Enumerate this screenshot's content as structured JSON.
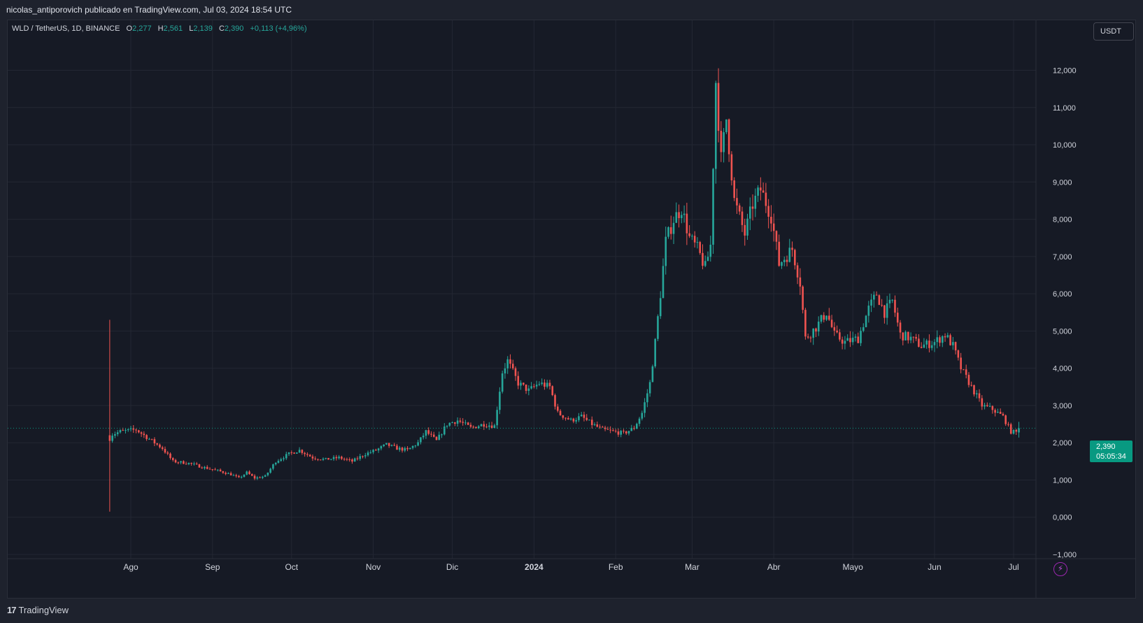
{
  "header": {
    "attribution": "nicolas_antiporovich publicado en TradingView.com, Jul 03, 2024 18:54 UTC"
  },
  "legend": {
    "symbol": "WLD / TetherUS, 1D, BINANCE",
    "open_label": "O",
    "open": "2,277",
    "high_label": "H",
    "high": "2,561",
    "low_label": "L",
    "low": "2,139",
    "close_label": "C",
    "close": "2,390",
    "change": "+0,113 (+4,96%)"
  },
  "currency_button": "USDT",
  "price_box": {
    "price": "2,390",
    "countdown": "05:05:34"
  },
  "footer": {
    "brand": "TradingView",
    "brand_mark": "17"
  },
  "icons": {
    "bolt": "lightning-icon",
    "brand": "tradingview-logo-icon"
  },
  "colors": {
    "up": "#26a69a",
    "down": "#ef5350",
    "background": "#161a25",
    "grid": "#232733",
    "price_line": "#089981",
    "alert": "#9c27b0"
  },
  "chart_data": {
    "type": "candlestick",
    "y_axis": {
      "min": -1,
      "max": 12,
      "ticks": [
        "12,000",
        "11,000",
        "10,000",
        "9,000",
        "8,000",
        "7,000",
        "6,000",
        "5,000",
        "4,000",
        "3,000",
        "2,000",
        "1,000",
        "0,000",
        "−1,000"
      ]
    },
    "x_axis": {
      "months": [
        "Ago",
        "Sep",
        "Oct",
        "Nov",
        "Dic",
        "2024",
        "Feb",
        "Mar",
        "Abr",
        "Mayo",
        "Jun",
        "Jul"
      ]
    },
    "last_price": 2.39,
    "series": [
      {
        "date": "2023-07-24",
        "close": 2.2,
        "low": 0.15,
        "high": 5.3
      },
      {
        "date": "2023-07-28",
        "close": 2.3
      },
      {
        "date": "2023-08-03",
        "close": 2.35
      },
      {
        "date": "2023-08-08",
        "close": 2.1
      },
      {
        "date": "2023-08-13",
        "close": 1.85
      },
      {
        "date": "2023-08-17",
        "close": 1.5
      },
      {
        "date": "2023-08-23",
        "close": 1.45
      },
      {
        "date": "2023-08-28",
        "close": 1.35
      },
      {
        "date": "2023-09-03",
        "close": 1.25
      },
      {
        "date": "2023-09-08",
        "close": 1.15
      },
      {
        "date": "2023-09-11",
        "close": 1.05
      },
      {
        "date": "2023-09-14",
        "close": 1.2
      },
      {
        "date": "2023-09-17",
        "close": 1.05
      },
      {
        "date": "2023-09-21",
        "close": 1.1
      },
      {
        "date": "2023-09-25",
        "close": 1.5
      },
      {
        "date": "2023-09-30",
        "close": 1.7
      },
      {
        "date": "2023-10-04",
        "close": 1.8
      },
      {
        "date": "2023-10-09",
        "close": 1.6
      },
      {
        "date": "2023-10-14",
        "close": 1.55
      },
      {
        "date": "2023-10-19",
        "close": 1.6
      },
      {
        "date": "2023-10-24",
        "close": 1.5
      },
      {
        "date": "2023-10-29",
        "close": 1.7
      },
      {
        "date": "2023-11-02",
        "close": 1.8
      },
      {
        "date": "2023-11-06",
        "close": 1.95
      },
      {
        "date": "2023-11-10",
        "close": 1.85
      },
      {
        "date": "2023-11-14",
        "close": 1.8
      },
      {
        "date": "2023-11-18",
        "close": 2.0
      },
      {
        "date": "2023-11-21",
        "close": 2.3
      },
      {
        "date": "2023-11-25",
        "close": 2.05
      },
      {
        "date": "2023-11-29",
        "close": 2.5
      },
      {
        "date": "2023-12-03",
        "close": 2.6
      },
      {
        "date": "2023-12-08",
        "close": 2.4
      },
      {
        "date": "2023-12-13",
        "close": 2.5
      },
      {
        "date": "2023-12-17",
        "close": 2.45
      },
      {
        "date": "2023-12-20",
        "close": 3.9
      },
      {
        "date": "2023-12-22",
        "close": 4.2
      },
      {
        "date": "2023-12-26",
        "close": 3.6
      },
      {
        "date": "2023-12-30",
        "close": 3.4
      },
      {
        "date": "2024-01-03",
        "close": 3.6
      },
      {
        "date": "2024-01-07",
        "close": 3.5
      },
      {
        "date": "2024-01-10",
        "close": 2.8
      },
      {
        "date": "2024-01-15",
        "close": 2.6
      },
      {
        "date": "2024-01-19",
        "close": 2.7
      },
      {
        "date": "2024-01-23",
        "close": 2.5
      },
      {
        "date": "2024-01-27",
        "close": 2.35
      },
      {
        "date": "2024-01-31",
        "close": 2.3
      },
      {
        "date": "2024-02-04",
        "close": 2.25
      },
      {
        "date": "2024-02-08",
        "close": 2.4
      },
      {
        "date": "2024-02-11",
        "close": 2.8
      },
      {
        "date": "2024-02-14",
        "close": 3.6
      },
      {
        "date": "2024-02-16",
        "close": 4.7
      },
      {
        "date": "2024-02-18",
        "close": 6.0
      },
      {
        "date": "2024-02-20",
        "close": 7.4
      },
      {
        "date": "2024-02-23",
        "close": 8.0
      },
      {
        "date": "2024-02-26",
        "close": 8.3
      },
      {
        "date": "2024-02-29",
        "close": 7.5
      },
      {
        "date": "2024-03-03",
        "close": 7.2
      },
      {
        "date": "2024-03-06",
        "close": 6.7
      },
      {
        "date": "2024-03-08",
        "close": 7.3
      },
      {
        "date": "2024-03-10",
        "close": 11.7
      },
      {
        "date": "2024-03-12",
        "close": 9.6
      },
      {
        "date": "2024-03-14",
        "close": 10.7
      },
      {
        "date": "2024-03-17",
        "close": 8.5
      },
      {
        "date": "2024-03-21",
        "close": 7.6
      },
      {
        "date": "2024-03-24",
        "close": 8.4
      },
      {
        "date": "2024-03-27",
        "close": 8.8
      },
      {
        "date": "2024-03-31",
        "close": 8.1
      },
      {
        "date": "2024-04-03",
        "close": 6.8
      },
      {
        "date": "2024-04-08",
        "close": 7.2
      },
      {
        "date": "2024-04-11",
        "close": 6.3
      },
      {
        "date": "2024-04-13",
        "close": 4.8
      },
      {
        "date": "2024-04-17",
        "close": 5.1
      },
      {
        "date": "2024-04-21",
        "close": 5.5
      },
      {
        "date": "2024-04-24",
        "close": 4.9
      },
      {
        "date": "2024-04-28",
        "close": 4.7
      },
      {
        "date": "2024-05-03",
        "close": 4.8
      },
      {
        "date": "2024-05-07",
        "close": 5.6
      },
      {
        "date": "2024-05-10",
        "close": 6.0
      },
      {
        "date": "2024-05-13",
        "close": 5.5
      },
      {
        "date": "2024-05-16",
        "close": 5.8
      },
      {
        "date": "2024-05-19",
        "close": 4.9
      },
      {
        "date": "2024-05-23",
        "close": 4.8
      },
      {
        "date": "2024-05-27",
        "close": 4.6
      },
      {
        "date": "2024-06-01",
        "close": 4.7
      },
      {
        "date": "2024-06-05",
        "close": 4.9
      },
      {
        "date": "2024-06-08",
        "close": 4.6
      },
      {
        "date": "2024-06-11",
        "close": 4.0
      },
      {
        "date": "2024-06-15",
        "close": 3.5
      },
      {
        "date": "2024-06-19",
        "close": 3.0
      },
      {
        "date": "2024-06-23",
        "close": 2.9
      },
      {
        "date": "2024-06-27",
        "close": 2.7
      },
      {
        "date": "2024-06-30",
        "close": 2.3
      },
      {
        "date": "2024-07-02",
        "close": 2.28
      },
      {
        "date": "2024-07-03",
        "close": 2.39
      }
    ]
  }
}
